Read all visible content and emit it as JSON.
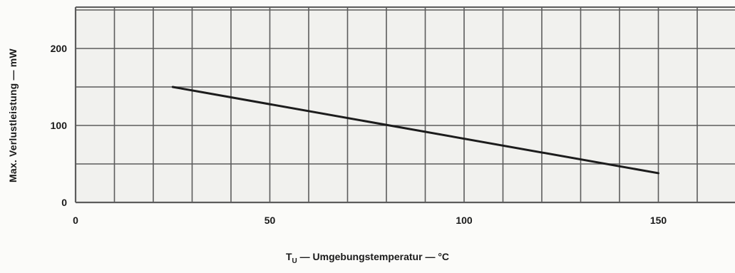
{
  "chart_data": {
    "type": "line",
    "ylabel": "Max. Verlustleistung — mW",
    "xlabel": {
      "symbol": "T",
      "subscript": "U",
      "text": " — Umgebungstemperatur — °C"
    },
    "xlim": [
      0,
      170
    ],
    "ylim": [
      0,
      250
    ],
    "x_ticks": [
      0,
      50,
      100,
      150
    ],
    "y_ticks": [
      0,
      100,
      200
    ],
    "x_gridlines": [
      0,
      10,
      20,
      30,
      40,
      50,
      60,
      70,
      80,
      90,
      100,
      110,
      120,
      130,
      140,
      150,
      160,
      170
    ],
    "y_gridlines": [
      0,
      50,
      100,
      150,
      200,
      250
    ],
    "grid": true,
    "series": [
      {
        "x": [
          25,
          150
        ],
        "y": [
          150,
          38
        ]
      }
    ]
  }
}
